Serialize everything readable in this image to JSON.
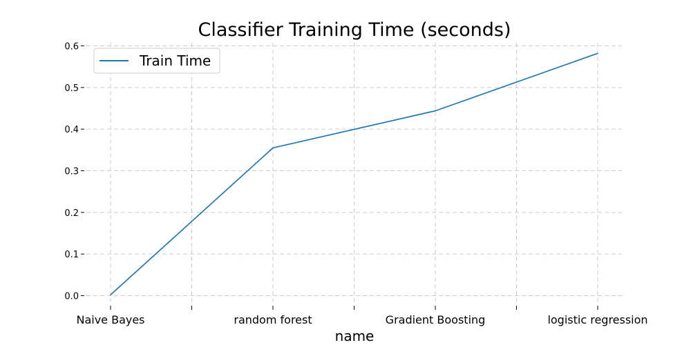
{
  "chart_data": {
    "type": "line",
    "title": "Classifier Training Time (seconds)",
    "xlabel": "name",
    "ylabel": "",
    "categories": [
      "Naive Bayes",
      "random forest",
      "Gradient Boosting",
      "logistic regression"
    ],
    "series": [
      {
        "name": "Train Time",
        "values": [
          0.002,
          0.355,
          0.444,
          0.582
        ],
        "color": "#1f77b4"
      }
    ],
    "ylim": [
      0.0,
      0.6
    ],
    "yticks": [
      "0.0",
      "0.1",
      "0.2",
      "0.3",
      "0.4",
      "0.5",
      "0.6"
    ],
    "grid": true,
    "legend_position": "top-left"
  }
}
